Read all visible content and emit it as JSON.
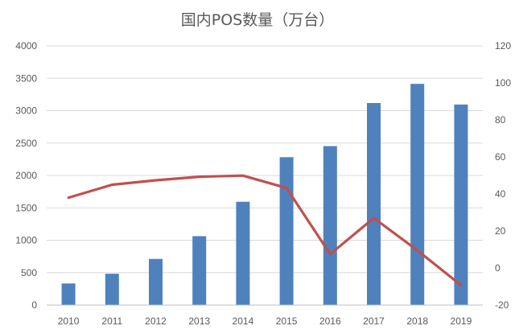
{
  "chart_data": {
    "type": "bar",
    "title": "国内POS数量（万台）",
    "categories": [
      "2010",
      "2011",
      "2012",
      "2013",
      "2014",
      "2015",
      "2016",
      "2017",
      "2018",
      "2019"
    ],
    "series": [
      {
        "type": "bar",
        "axis": "left",
        "color": "#4f81bd",
        "values": [
          333,
          483,
          712,
          1063,
          1594,
          2282,
          2453,
          3118,
          3414,
          3095
        ]
      },
      {
        "type": "line",
        "axis": "right",
        "color": "#c0504d",
        "values": [
          38,
          45,
          47.4,
          49.3,
          49.9,
          43.2,
          7.5,
          27,
          9.5,
          -9.3
        ]
      }
    ],
    "ylim": [
      0,
      4000
    ],
    "yticks": [
      "0",
      "500",
      "1000",
      "1500",
      "2000",
      "2500",
      "3000",
      "3500",
      "4000"
    ],
    "y2lim": [
      -20,
      120
    ],
    "y2ticks": [
      "-20",
      "0",
      "20",
      "40",
      "60",
      "80",
      "100",
      "120"
    ],
    "grid": true,
    "legend": "none"
  }
}
